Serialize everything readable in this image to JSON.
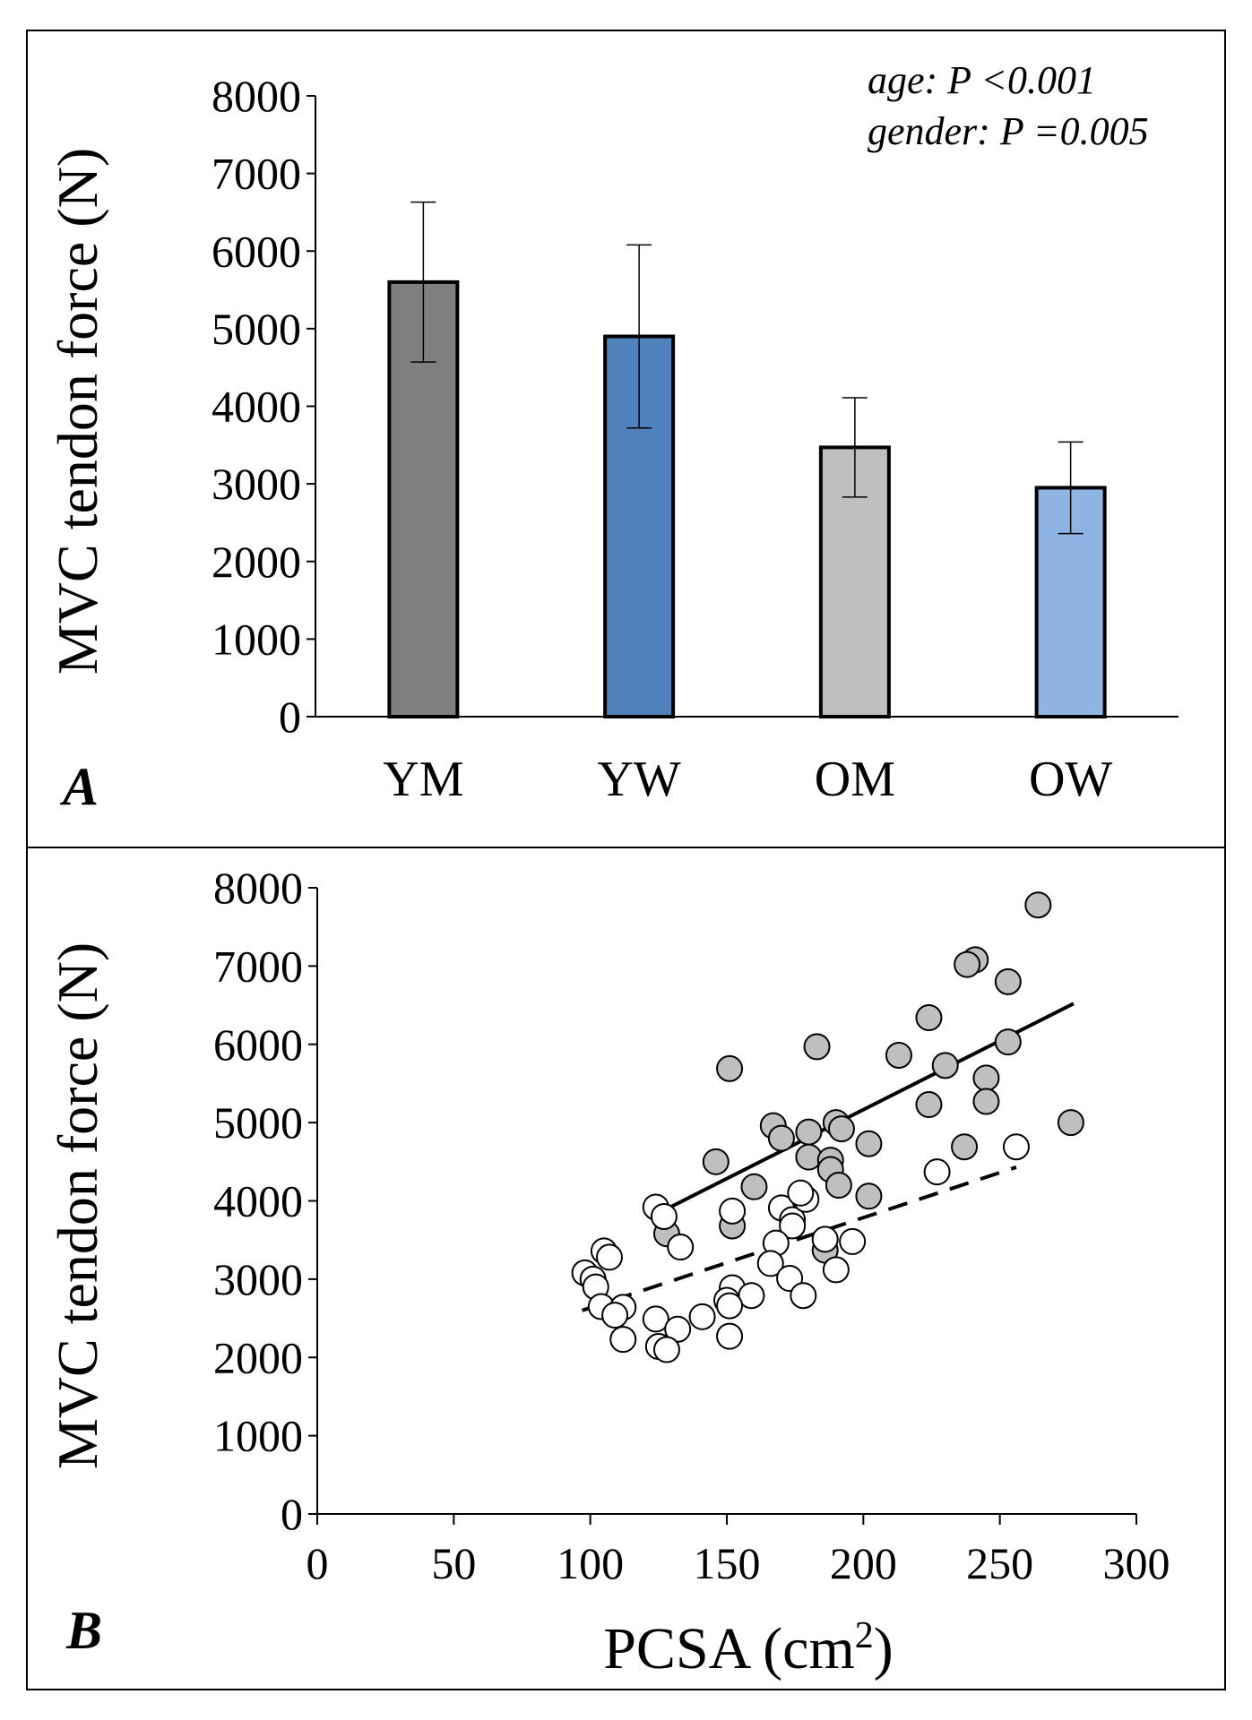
{
  "panel_a": {
    "label": "A",
    "annotations": [
      "age: P <0.001",
      "gender: P =0.005"
    ]
  },
  "panel_b": {
    "label": "B"
  },
  "chart_data": [
    {
      "type": "bar",
      "ylabel": "MVC tendon force (N)",
      "xlabel": "",
      "ylim": [
        0,
        8000
      ],
      "yticks": [
        0,
        1000,
        2000,
        3000,
        4000,
        5000,
        6000,
        7000,
        8000
      ],
      "categories": [
        "YM",
        "YW",
        "OM",
        "OW"
      ],
      "values": [
        5600,
        4900,
        3470,
        2950
      ],
      "errors": [
        1030,
        1180,
        640,
        590
      ],
      "colors": [
        "#7f7f7f",
        "#4f81bd",
        "#bfbfbf",
        "#8eb4e3"
      ],
      "grid": false
    },
    {
      "type": "scatter",
      "ylabel": "MVC tendon force (N)",
      "xlabel": "PCSA (cm",
      "xlabel_superscript": "2",
      "xlabel_suffix": ")",
      "xlim": [
        0,
        300
      ],
      "ylim": [
        0,
        8000
      ],
      "xticks": [
        0,
        50,
        100,
        150,
        200,
        250,
        300
      ],
      "yticks": [
        0,
        1000,
        2000,
        3000,
        4000,
        5000,
        6000,
        7000,
        8000
      ],
      "grid": false,
      "series": [
        {
          "marker": "filled-circle",
          "color": "#bfbfbf",
          "points": [
            [
              264,
              7780
            ],
            [
              241,
              7080
            ],
            [
              238,
              7020
            ],
            [
              253,
              6800
            ],
            [
              224,
              6340
            ],
            [
              253,
              6030
            ],
            [
              183,
              5970
            ],
            [
              213,
              5860
            ],
            [
              230,
              5730
            ],
            [
              151,
              5690
            ],
            [
              245,
              5570
            ],
            [
              224,
              5230
            ],
            [
              245,
              5270
            ],
            [
              190,
              5000
            ],
            [
              276,
              5000
            ],
            [
              167,
              4960
            ],
            [
              180,
              4880
            ],
            [
              170,
              4800
            ],
            [
              192,
              4920
            ],
            [
              202,
              4730
            ],
            [
              237,
              4690
            ],
            [
              180,
              4560
            ],
            [
              146,
              4500
            ],
            [
              188,
              4520
            ],
            [
              188,
              4400
            ],
            [
              191,
              4200
            ],
            [
              160,
              4180
            ],
            [
              202,
              4060
            ],
            [
              152,
              3680
            ],
            [
              128,
              3580
            ],
            [
              186,
              3370
            ]
          ],
          "fit": [
            [
              127,
              3880
            ],
            [
              277,
              6520
            ]
          ]
        },
        {
          "marker": "open-circle",
          "color": "#ffffff",
          "points": [
            [
              256,
              4690
            ],
            [
              227,
              4370
            ],
            [
              124,
              3920
            ],
            [
              170,
              3910
            ],
            [
              152,
              3870
            ],
            [
              127,
              3800
            ],
            [
              174,
              3760
            ],
            [
              179,
              4020
            ],
            [
              177,
              4100
            ],
            [
              174,
              3680
            ],
            [
              196,
              3480
            ],
            [
              186,
              3510
            ],
            [
              133,
              3410
            ],
            [
              168,
              3460
            ],
            [
              105,
              3360
            ],
            [
              107,
              3280
            ],
            [
              98,
              3080
            ],
            [
              101,
              3000
            ],
            [
              166,
              3200
            ],
            [
              190,
              3120
            ],
            [
              173,
              3010
            ],
            [
              102,
              2900
            ],
            [
              152,
              2890
            ],
            [
              159,
              2790
            ],
            [
              178,
              2790
            ],
            [
              150,
              2730
            ],
            [
              151,
              2660
            ],
            [
              104,
              2650
            ],
            [
              112,
              2640
            ],
            [
              109,
              2540
            ],
            [
              141,
              2520
            ],
            [
              124,
              2490
            ],
            [
              132,
              2360
            ],
            [
              112,
              2230
            ],
            [
              151,
              2270
            ],
            [
              125,
              2140
            ],
            [
              128,
              2100
            ]
          ],
          "fit": [
            [
              97,
              2600
            ],
            [
              256,
              4430
            ]
          ]
        }
      ]
    }
  ]
}
